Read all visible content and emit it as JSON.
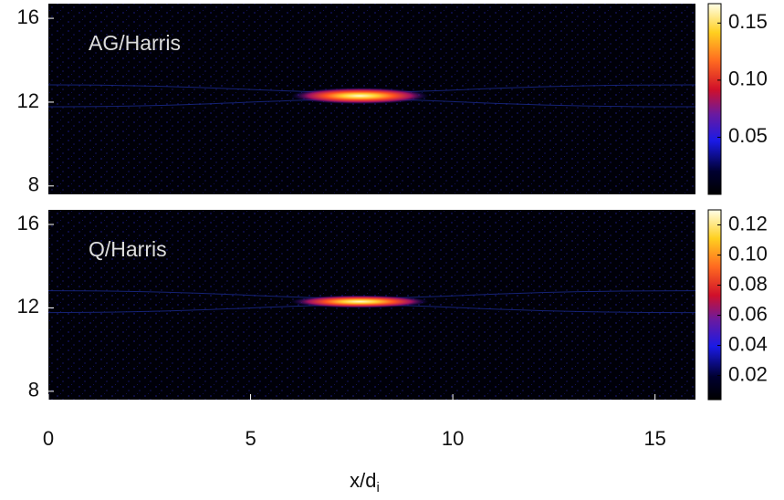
{
  "chart_data": [
    {
      "type": "heatmap",
      "label": "AG/Harris",
      "xlim": [
        0,
        16
      ],
      "ylim": [
        7.6,
        16.7
      ],
      "yticks": [
        8,
        12,
        16
      ],
      "colorbar": {
        "lim": [
          0,
          0.167
        ],
        "ticks": [
          0.05,
          {
            "value": 0.1,
            "label": "0.10"
          },
          0.15
        ]
      }
    },
    {
      "type": "heatmap",
      "label": "Q/Harris",
      "xlim": [
        0,
        16
      ],
      "ylim": [
        7.6,
        16.7
      ],
      "yticks": [
        8,
        12,
        16
      ],
      "colorbar": {
        "lim": [
          0.004,
          0.13
        ],
        "ticks": [
          0.02,
          0.04,
          0.06,
          0.08,
          {
            "value": 0.1,
            "label": "0.10"
          },
          0.12
        ]
      },
      "xticks": [
        0,
        5,
        10,
        15
      ],
      "xlabel": "x/d",
      "xlabel_sub": "i"
    }
  ]
}
